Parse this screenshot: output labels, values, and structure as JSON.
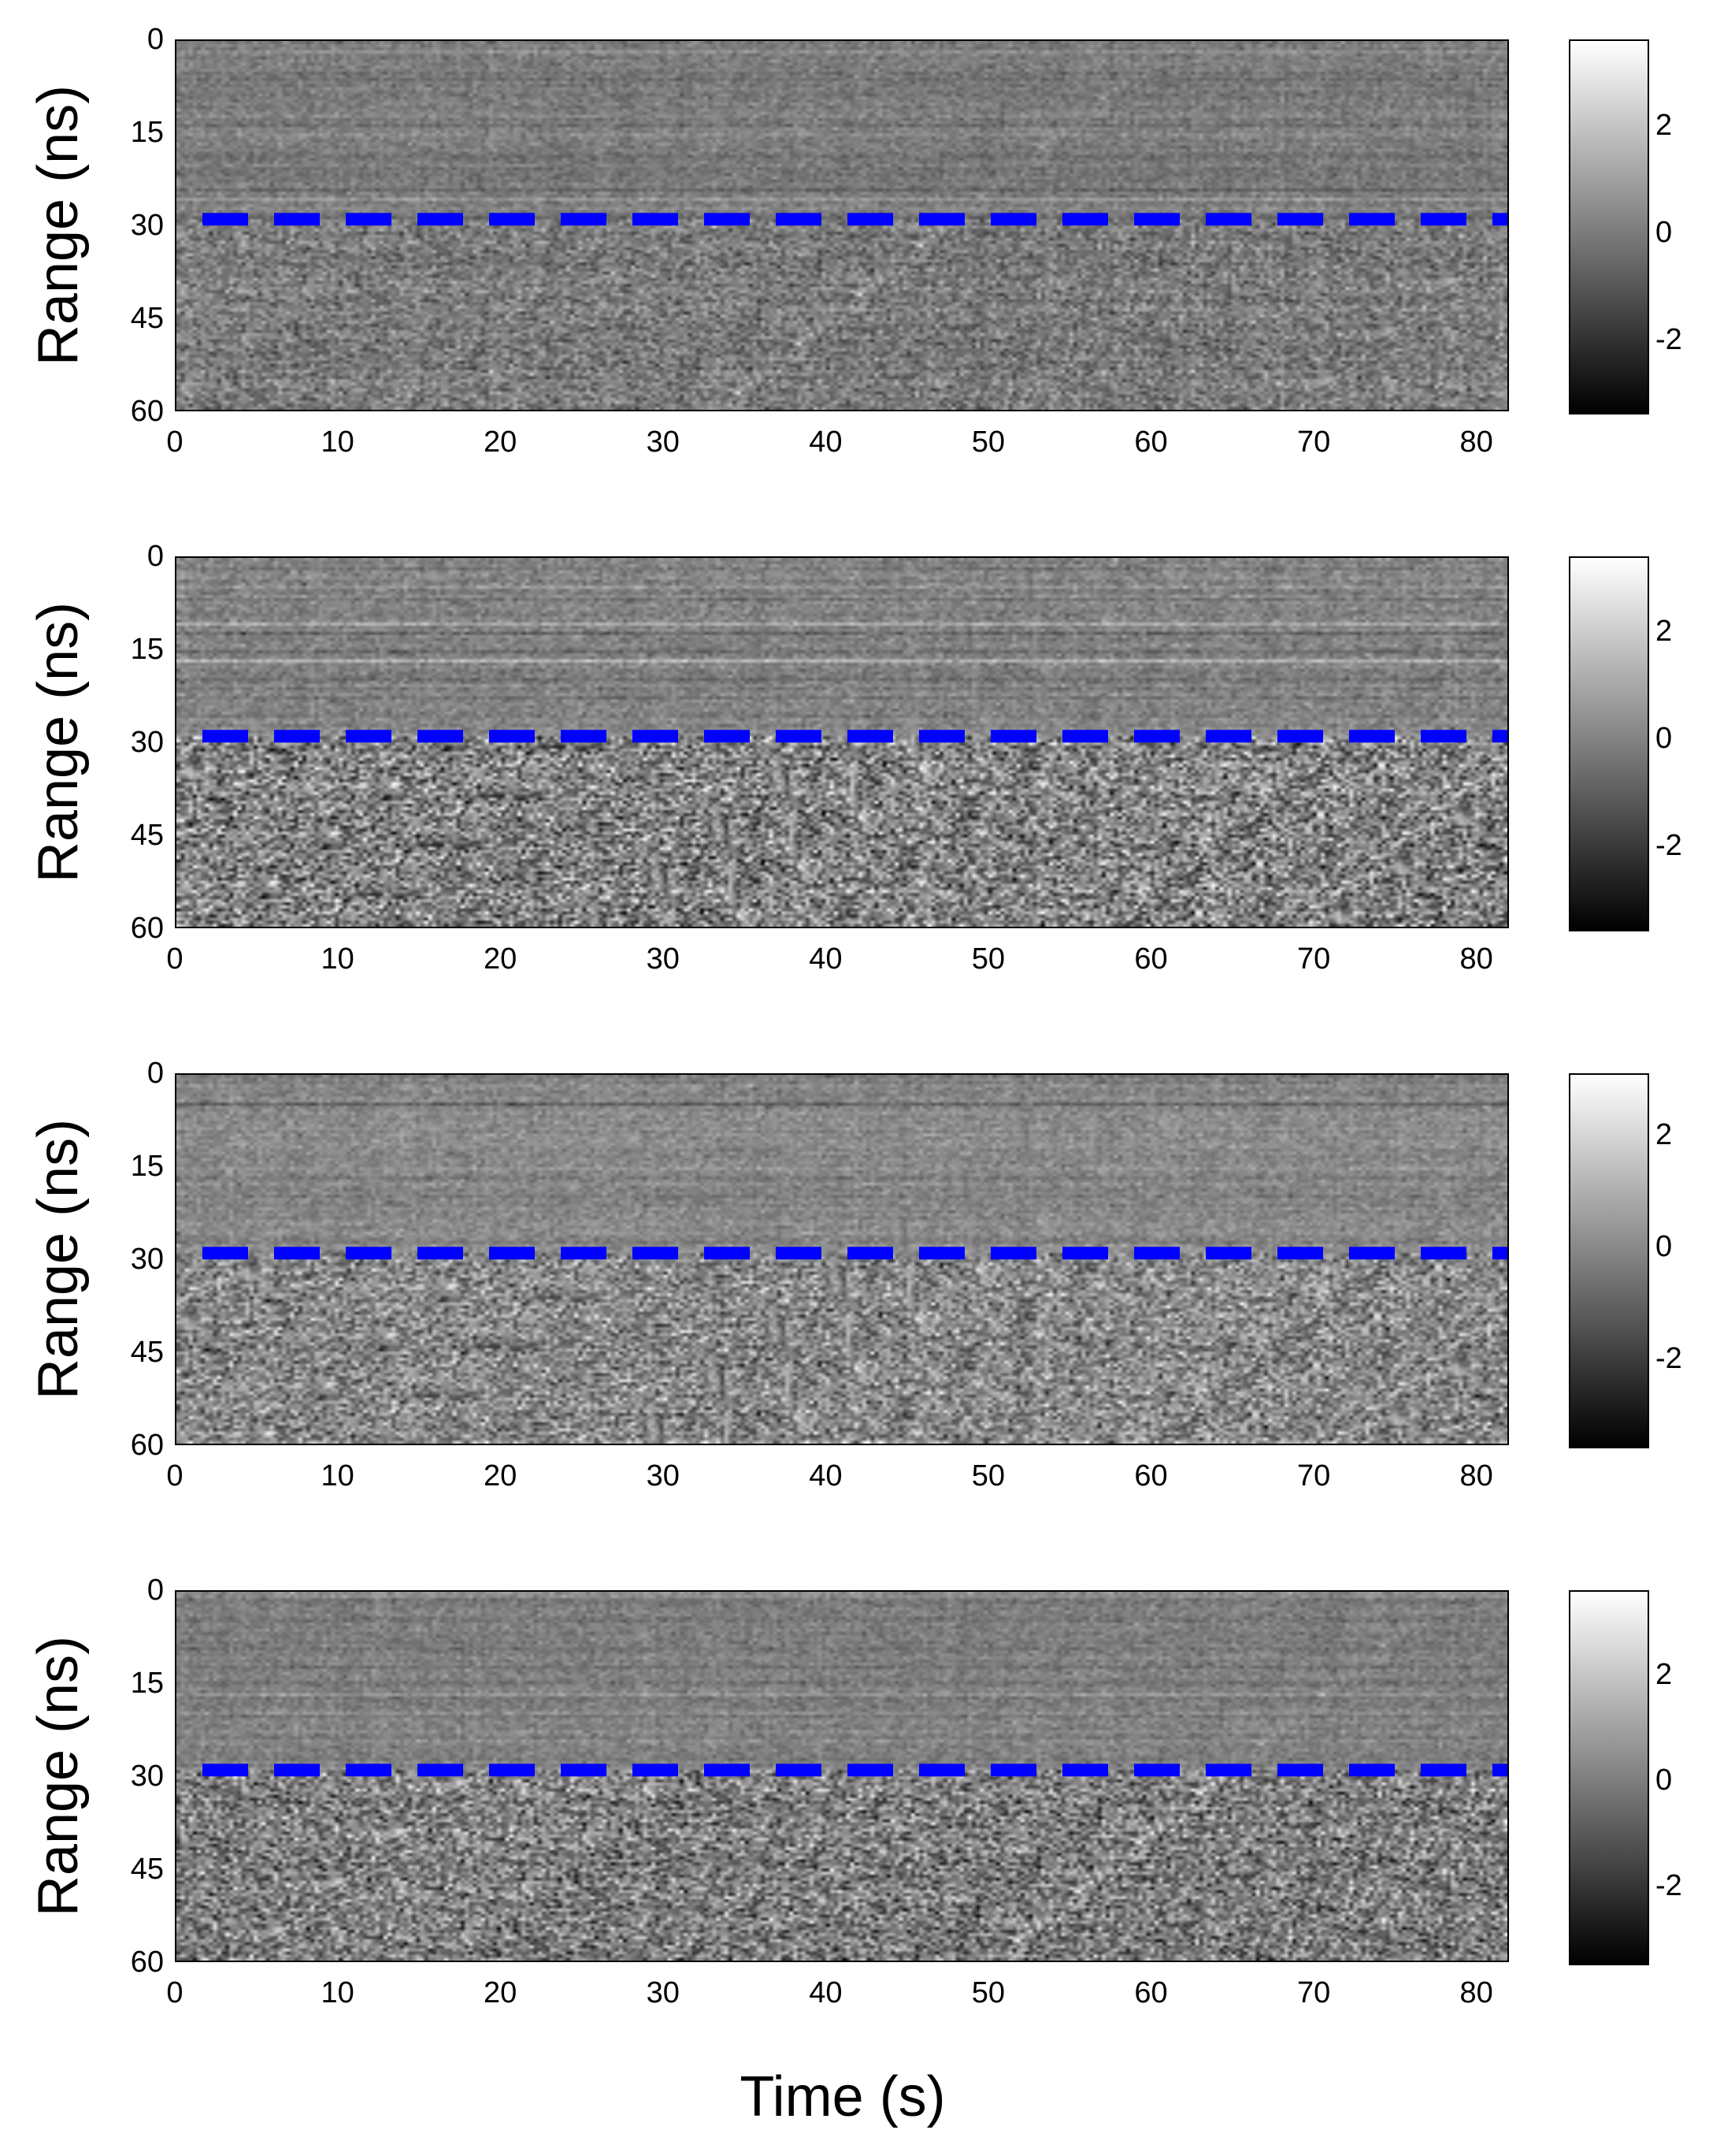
{
  "chart_data": [
    {
      "type": "heatmap",
      "title": "",
      "xlabel": "",
      "ylabel": "Range (ns)",
      "xlim": [
        0,
        82
      ],
      "ylim": [
        60,
        0
      ],
      "xticks": [
        "0",
        "10",
        "20",
        "30",
        "40",
        "50",
        "60",
        "70",
        "80"
      ],
      "yticks": [
        "0",
        "15",
        "30",
        "45",
        "60"
      ],
      "colorbar": {
        "range": [
          -3.4,
          3.6
        ],
        "ticks": [
          "2",
          "0",
          "-2"
        ],
        "colormap": "gray"
      },
      "reference_line": {
        "y": 29,
        "color": "#0000ff",
        "style": "dashed"
      },
      "upper_amplitude": 0.45,
      "lower_amplitude": 0.7
    },
    {
      "type": "heatmap",
      "title": "",
      "xlabel": "",
      "ylabel": "Range (ns)",
      "xlim": [
        0,
        82
      ],
      "ylim": [
        60,
        0
      ],
      "xticks": [
        "0",
        "10",
        "20",
        "30",
        "40",
        "50",
        "60",
        "70",
        "80"
      ],
      "yticks": [
        "0",
        "15",
        "30",
        "45",
        "60"
      ],
      "colorbar": {
        "range": [
          -3.6,
          3.4
        ],
        "ticks": [
          "2",
          "0",
          "-2"
        ],
        "colormap": "gray"
      },
      "reference_line": {
        "y": 29,
        "color": "#0000ff",
        "style": "dashed"
      },
      "upper_amplitude": 0.5,
      "lower_amplitude": 1.3
    },
    {
      "type": "heatmap",
      "title": "",
      "xlabel": "",
      "ylabel": "Range (ns)",
      "xlim": [
        0,
        82
      ],
      "ylim": [
        60,
        0
      ],
      "xticks": [
        "0",
        "10",
        "20",
        "30",
        "40",
        "50",
        "60",
        "70",
        "80"
      ],
      "yticks": [
        "0",
        "15",
        "30",
        "45",
        "60"
      ],
      "colorbar": {
        "range": [
          -3.6,
          3.1
        ],
        "ticks": [
          "2",
          "0",
          "-2"
        ],
        "colormap": "gray"
      },
      "reference_line": {
        "y": 29,
        "color": "#0000ff",
        "style": "dashed"
      },
      "upper_amplitude": 0.45,
      "lower_amplitude": 1.0
    },
    {
      "type": "heatmap",
      "title": "",
      "xlabel": "",
      "ylabel": "Range (ns)",
      "xlim": [
        0,
        82
      ],
      "ylim": [
        60,
        0
      ],
      "xticks": [
        "0",
        "10",
        "20",
        "30",
        "40",
        "50",
        "60",
        "70",
        "80"
      ],
      "yticks": [
        "0",
        "15",
        "30",
        "45",
        "60"
      ],
      "colorbar": {
        "range": [
          -3.5,
          3.6
        ],
        "ticks": [
          "2",
          "0",
          "-2"
        ],
        "colormap": "gray"
      },
      "reference_line": {
        "y": 29,
        "color": "#0000ff",
        "style": "dashed"
      },
      "upper_amplitude": 0.45,
      "lower_amplitude": 1.2
    }
  ],
  "shared_xlabel": "Time (s)"
}
